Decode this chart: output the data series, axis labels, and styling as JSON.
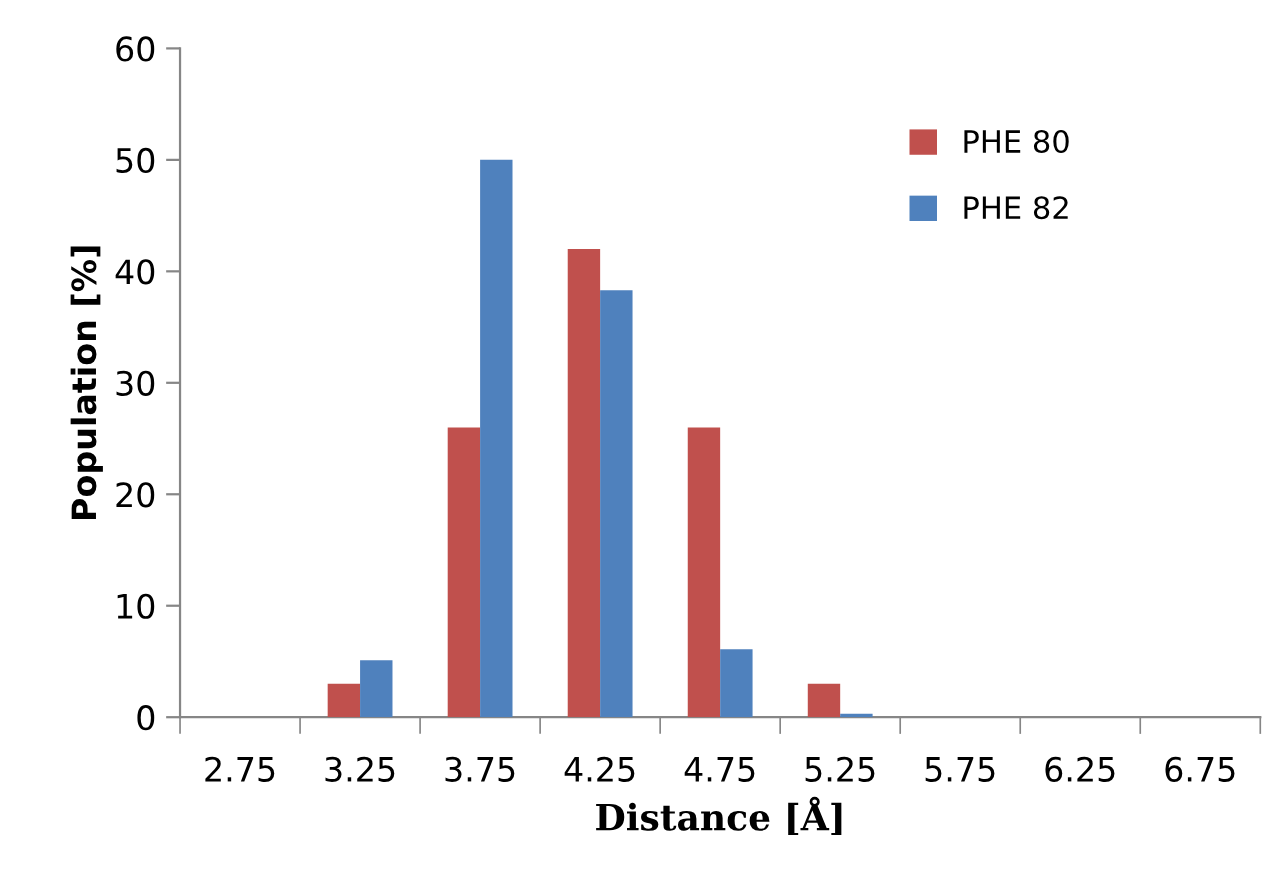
{
  "chart_data": {
    "type": "bar",
    "xlabel": "Distance [Å]",
    "ylabel": "Population [%]",
    "categories": [
      "2.75",
      "3.25",
      "3.75",
      "4.25",
      "4.75",
      "5.25",
      "5.75",
      "6.25",
      "6.75"
    ],
    "series": [
      {
        "name": "PHE 80",
        "color": "#c0504d",
        "values": [
          0,
          3,
          26,
          42,
          26,
          3,
          0,
          0,
          0
        ]
      },
      {
        "name": "PHE 82",
        "color": "#4f81bd",
        "values": [
          0,
          5.1,
          50,
          38.3,
          6.1,
          0.3,
          0,
          0,
          0
        ]
      }
    ],
    "ylim": [
      0,
      60
    ],
    "yticks": [
      0,
      10,
      20,
      30,
      40,
      50,
      60
    ],
    "grid": false,
    "legend": "top right"
  }
}
